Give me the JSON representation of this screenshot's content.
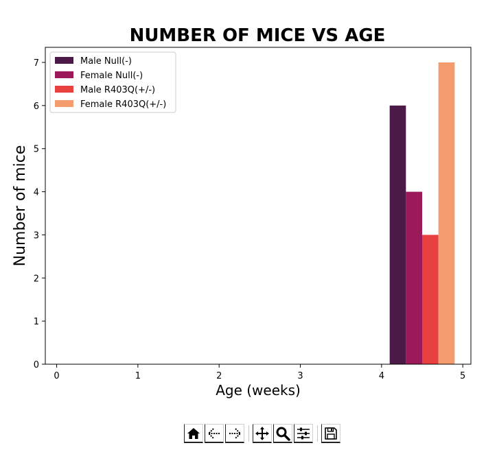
{
  "chart_data": {
    "type": "bar",
    "title": "NUMBER OF MICE VS AGE",
    "xlabel": "Age (weeks)",
    "ylabel": "Number of mice",
    "xlim": [
      -0.14,
      5.1
    ],
    "ylim": [
      0,
      7.35
    ],
    "xticks": [
      0,
      1,
      2,
      3,
      4,
      5
    ],
    "yticks": [
      0,
      1,
      2,
      3,
      4,
      5,
      6,
      7
    ],
    "grid": false,
    "legend_position": "top-left",
    "series": [
      {
        "name": "Male Null(-)",
        "x": 4.2,
        "width": 0.2,
        "value": 6,
        "color": "#4b1a46"
      },
      {
        "name": "Female Null(-)",
        "x": 4.4,
        "width": 0.2,
        "value": 4,
        "color": "#9c1a5a"
      },
      {
        "name": "Male R403Q(+/-)",
        "x": 4.6,
        "width": 0.2,
        "value": 3,
        "color": "#e8403f"
      },
      {
        "name": "Female R403Q(+/-)",
        "x": 4.8,
        "width": 0.2,
        "value": 7,
        "color": "#f49c6e"
      }
    ]
  },
  "toolbar": {
    "buttons": [
      {
        "name": "home-button",
        "icon": "home-icon"
      },
      {
        "name": "back-button",
        "icon": "arrow-left-icon"
      },
      {
        "name": "forward-button",
        "icon": "arrow-right-icon"
      },
      {
        "name": "pan-button",
        "icon": "move-icon"
      },
      {
        "name": "zoom-button",
        "icon": "magnifier-icon"
      },
      {
        "name": "configure-subplots-button",
        "icon": "sliders-icon"
      },
      {
        "name": "save-button",
        "icon": "floppy-disk-icon"
      }
    ]
  }
}
